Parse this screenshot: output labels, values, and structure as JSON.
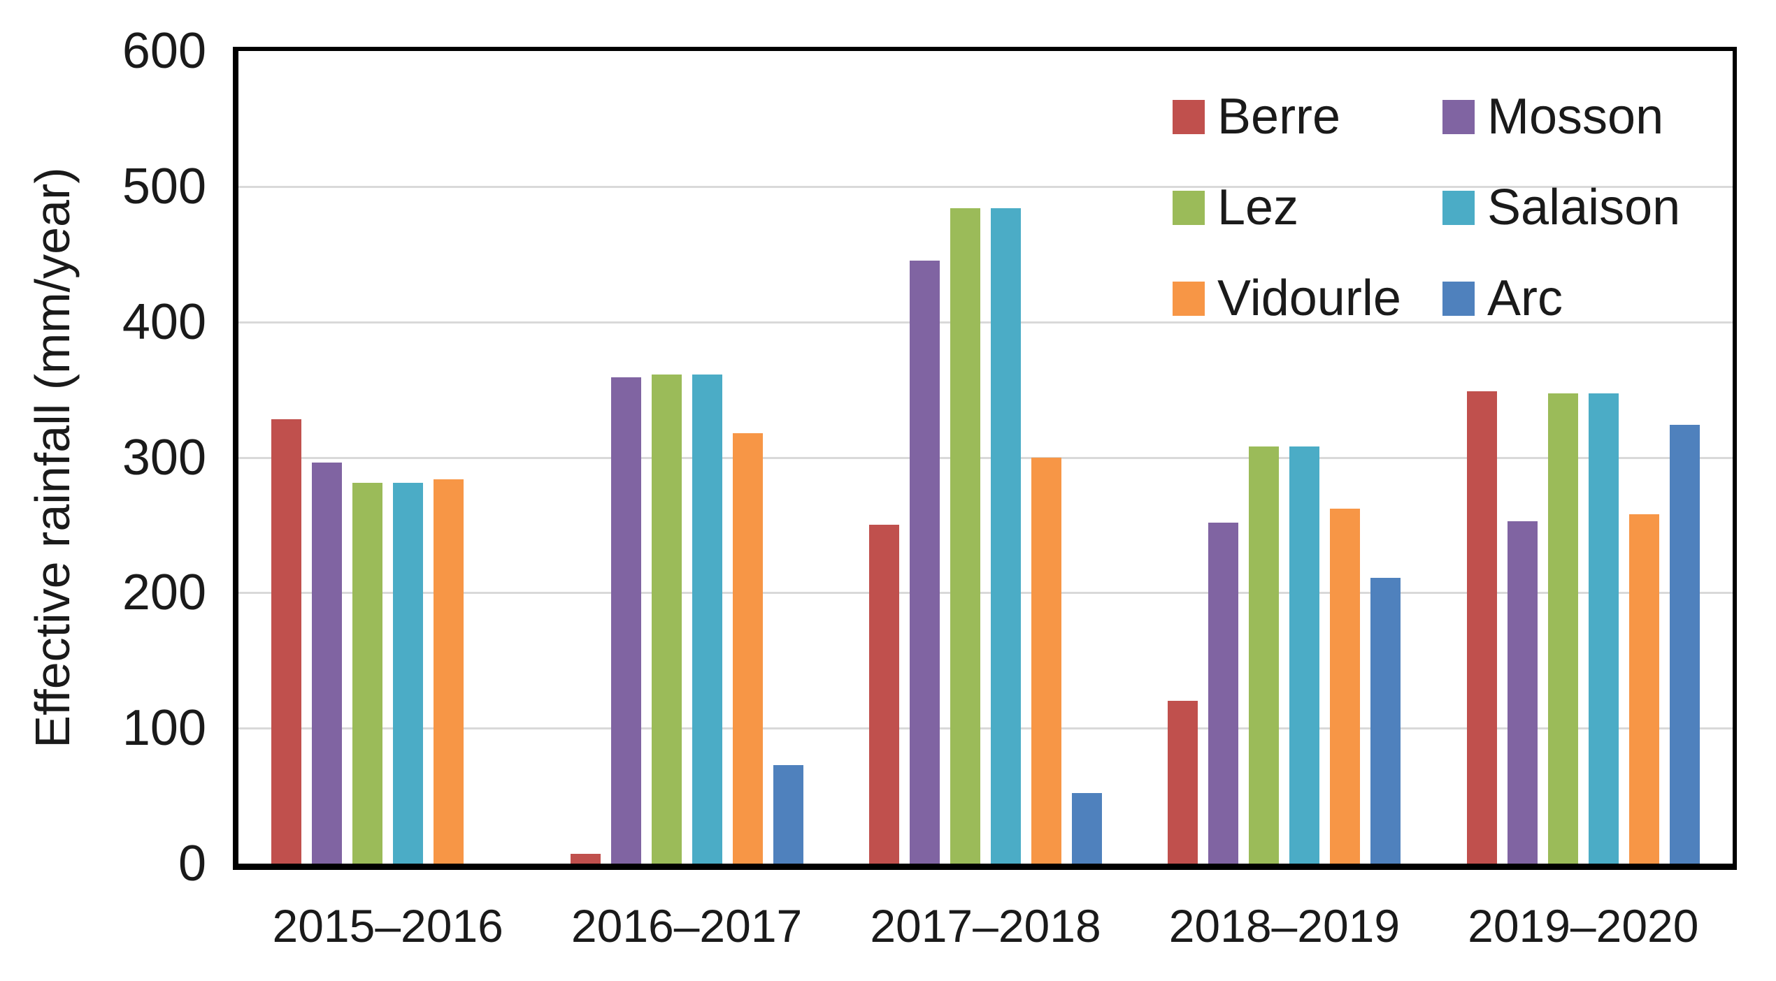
{
  "chart_data": {
    "type": "bar",
    "title": "",
    "ylabel": "Effective rainfall (mm/year)",
    "xlabel": "",
    "ylim": [
      0,
      600
    ],
    "yticks": [
      0,
      100,
      200,
      300,
      400,
      500,
      600
    ],
    "grid": "horizontal",
    "legend_position": "top-right inside plot, two columns",
    "categories": [
      "2015–2016",
      "2016–2017",
      "2017–2018",
      "2018–2019",
      "2019–2020"
    ],
    "series": [
      {
        "name": "Berre",
        "color": "#C0504D",
        "values": [
          328,
          7,
          250,
          120,
          349
        ]
      },
      {
        "name": "Mosson",
        "color": "#8064A2",
        "values": [
          296,
          359,
          445,
          252,
          253
        ]
      },
      {
        "name": "Lez",
        "color": "#9BBB59",
        "values": [
          281,
          361,
          484,
          308,
          347
        ]
      },
      {
        "name": "Salaison",
        "color": "#4BACC6",
        "values": [
          281,
          361,
          484,
          308,
          347
        ]
      },
      {
        "name": "Vidourle",
        "color": "#F79646",
        "values": [
          284,
          318,
          300,
          262,
          258
        ]
      },
      {
        "name": "Arc",
        "color": "#4F81BD",
        "values": [
          0,
          73,
          52,
          211,
          324
        ]
      }
    ]
  },
  "colors": {
    "axis_frame": "#000000",
    "gridline": "#d9d9d9",
    "text": "#1a1a1a",
    "background": "#ffffff"
  }
}
